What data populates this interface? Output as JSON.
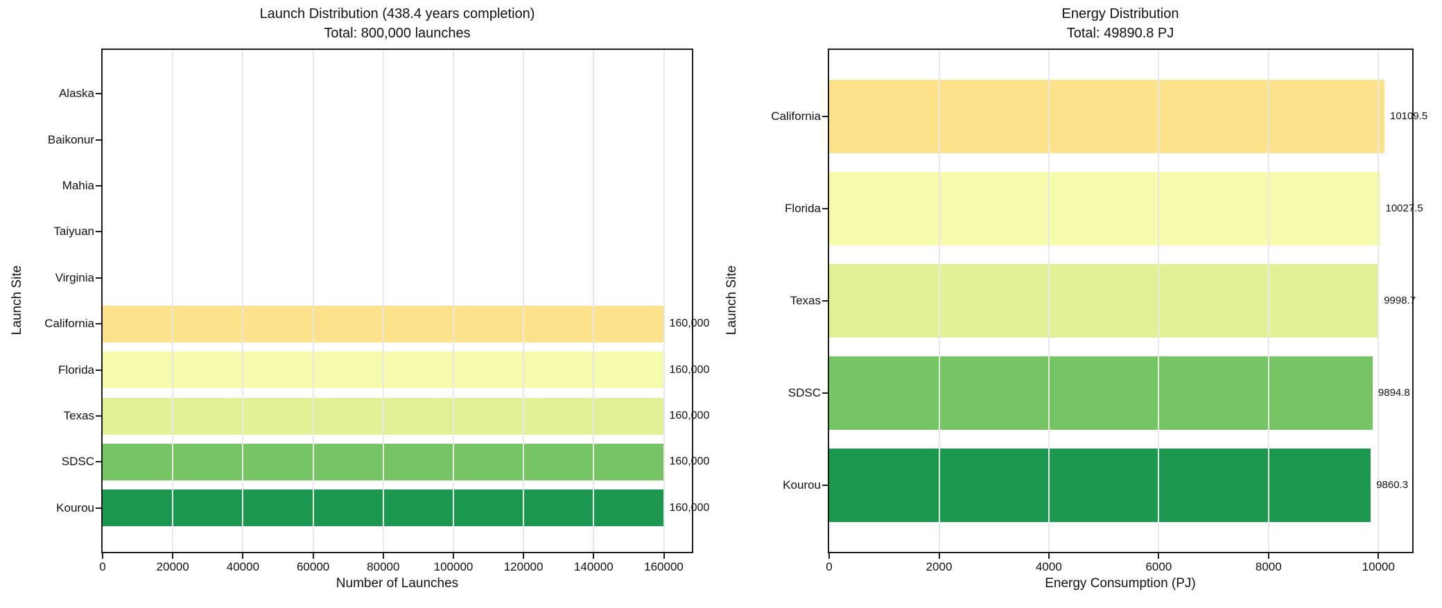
{
  "figure": {
    "background": "#ffffff",
    "spine_color": "#1c1c1c",
    "gridline_color": "#e8e8e8",
    "text_color": "#111111"
  },
  "chart_data": [
    {
      "id": "launch-distribution",
      "type": "bar",
      "orientation": "horizontal",
      "title": "Launch Distribution (438.4 years completion)",
      "subtitle": "Total: 800,000 launches",
      "xlabel": "Number of Launches",
      "ylabel": "Launch Site",
      "categories": [
        "Alaska",
        "Baikonur",
        "Mahia",
        "Taiyuan",
        "Virginia",
        "California",
        "Florida",
        "Texas",
        "SDSC",
        "Kourou"
      ],
      "values": [
        0,
        0,
        0,
        0,
        0,
        160000,
        160000,
        160000,
        160000,
        160000
      ],
      "value_labels": [
        "",
        "",
        "",
        "",
        "",
        "160,000",
        "160,000",
        "160,000",
        "160,000",
        "160,000"
      ],
      "bar_colors": [
        "",
        "",
        "",
        "",
        "",
        "#FDE18B",
        "#F5FAAC",
        "#E0F195",
        "#77C465",
        "#1C9750"
      ],
      "xticks": [
        0,
        20000,
        40000,
        60000,
        80000,
        100000,
        120000,
        140000,
        160000
      ],
      "xtick_labels": [
        "0",
        "20000",
        "40000",
        "60000",
        "80000",
        "100000",
        "120000",
        "140000",
        "160000"
      ],
      "xlim": [
        0,
        168000
      ],
      "grid": true,
      "grid_over_bars": true,
      "legend": null
    },
    {
      "id": "energy-distribution",
      "type": "bar",
      "orientation": "horizontal",
      "title": "Energy Distribution",
      "subtitle": "Total: 49890.8 PJ",
      "xlabel": "Energy Consumption (PJ)",
      "ylabel": "Launch Site",
      "categories": [
        "California",
        "Florida",
        "Texas",
        "SDSC",
        "Kourou"
      ],
      "values": [
        10109.5,
        10027.5,
        9998.7,
        9894.8,
        9860.3
      ],
      "value_labels": [
        "10109.5",
        "10027.5",
        "9998.7",
        "9894.8",
        "9860.3"
      ],
      "bar_colors": [
        "#FDE18B",
        "#F5FAAC",
        "#E0F195",
        "#77C465",
        "#1C9750"
      ],
      "xticks": [
        0,
        2000,
        4000,
        6000,
        8000,
        10000
      ],
      "xtick_labels": [
        "0",
        "2000",
        "4000",
        "6000",
        "8000",
        "10000"
      ],
      "xlim": [
        0,
        10615
      ],
      "grid": true,
      "grid_over_bars": true,
      "legend": null
    }
  ]
}
